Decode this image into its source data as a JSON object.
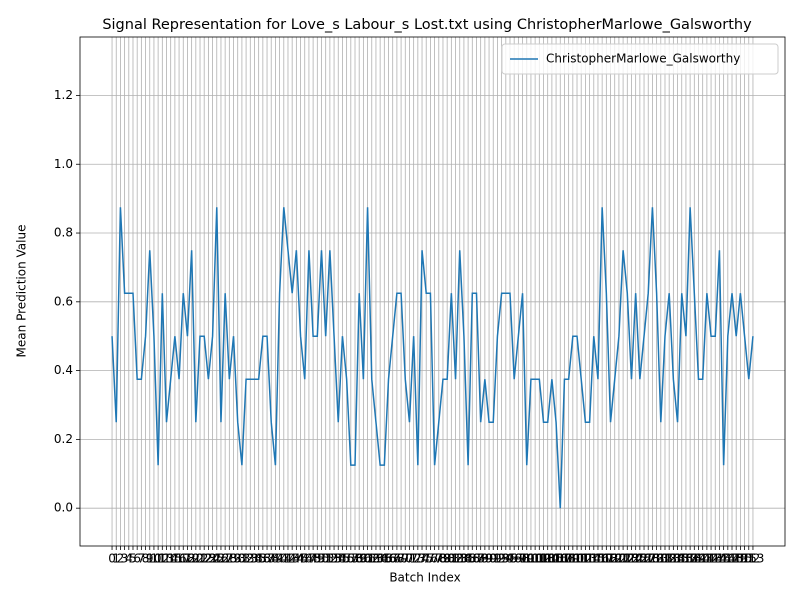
{
  "chart_data": {
    "type": "line",
    "title": "Signal Representation for Love_s Labour_s Lost.txt using ChristopherMarlowe_Galsworthy",
    "x_label": "Batch Index",
    "y_label": "Mean Prediction Value",
    "x": [
      0,
      1,
      2,
      3,
      4,
      5,
      6,
      7,
      8,
      9,
      10,
      11,
      12,
      13,
      14,
      15,
      16,
      17,
      18,
      19,
      20,
      21,
      22,
      23,
      24,
      25,
      26,
      27,
      28,
      29,
      30,
      31,
      32,
      33,
      34,
      35,
      36,
      37,
      38,
      39,
      40,
      41,
      42,
      43,
      44,
      45,
      46,
      47,
      48,
      49,
      50,
      51,
      52,
      53,
      54,
      55,
      56,
      57,
      58,
      59,
      60,
      61,
      62,
      63,
      64,
      65,
      66,
      67,
      68,
      69,
      70,
      71,
      72,
      73,
      74,
      75,
      76,
      77,
      78,
      79,
      80,
      81,
      82,
      83,
      84,
      85,
      86,
      87,
      88,
      89,
      90,
      91,
      92,
      93,
      94,
      95,
      96,
      97,
      98,
      99,
      100,
      101,
      102,
      103,
      104,
      105,
      106,
      107,
      108,
      109,
      110,
      111,
      112,
      113,
      114,
      115,
      116,
      117,
      118,
      119,
      120,
      121,
      122,
      123,
      124,
      125,
      126,
      127,
      128,
      129,
      130,
      131,
      132,
      133,
      134,
      135,
      136,
      137,
      138,
      139,
      140,
      141,
      142,
      143,
      144,
      145,
      146,
      147,
      148,
      149,
      150,
      151,
      152,
      153
    ],
    "series": [
      {
        "name": "ChristopherMarlowe_Galsworthy",
        "color": "#1f77b4",
        "values": [
          0.5,
          0.25,
          0.875,
          0.625,
          0.625,
          0.625,
          0.375,
          0.375,
          0.5,
          0.75,
          0.5,
          0.125,
          0.625,
          0.25,
          0.375,
          0.5,
          0.375,
          0.625,
          0.5,
          0.75,
          0.25,
          0.5,
          0.5,
          0.375,
          0.5,
          0.875,
          0.25,
          0.625,
          0.375,
          0.5,
          0.25,
          0.125,
          0.375,
          0.375,
          0.375,
          0.375,
          0.5,
          0.5,
          0.25,
          0.125,
          0.625,
          0.875,
          0.75,
          0.625,
          0.75,
          0.5,
          0.375,
          0.75,
          0.5,
          0.5,
          0.75,
          0.5,
          0.75,
          0.5,
          0.25,
          0.5,
          0.375,
          0.125,
          0.125,
          0.625,
          0.375,
          0.875,
          0.375,
          0.25,
          0.125,
          0.125,
          0.375,
          0.5,
          0.625,
          0.625,
          0.375,
          0.25,
          0.5,
          0.125,
          0.75,
          0.625,
          0.625,
          0.125,
          0.25,
          0.375,
          0.375,
          0.625,
          0.375,
          0.75,
          0.5,
          0.125,
          0.625,
          0.625,
          0.25,
          0.375,
          0.25,
          0.25,
          0.5,
          0.625,
          0.625,
          0.625,
          0.375,
          0.5,
          0.625,
          0.125,
          0.375,
          0.375,
          0.375,
          0.25,
          0.25,
          0.375,
          0.25,
          0,
          0.375,
          0.375,
          0.5,
          0.5,
          0.375,
          0.25,
          0.25,
          0.5,
          0.375,
          0.875,
          0.625,
          0.25,
          0.375,
          0.5,
          0.75,
          0.625,
          0.375,
          0.625,
          0.375,
          0.5,
          0.625,
          0.875,
          0.625,
          0.25,
          0.5,
          0.625,
          0.375,
          0.25,
          0.625,
          0.5,
          0.875,
          0.625,
          0.375,
          0.375,
          0.625,
          0.5,
          0.5,
          0.75,
          0.125,
          0.5,
          0.625,
          0.5,
          0.625,
          0.5,
          0.375,
          0.5
        ]
      }
    ],
    "xlim": [
      -7.65,
      160.65
    ],
    "ylim": [
      -0.11,
      1.37
    ],
    "xticks": [
      0,
      1,
      2,
      3,
      4,
      5,
      6,
      7,
      8,
      9,
      10,
      11,
      12,
      13,
      14,
      15,
      16,
      17,
      18,
      19,
      20,
      21,
      22,
      23,
      24,
      25,
      26,
      27,
      28,
      29,
      30,
      31,
      32,
      33,
      34,
      35,
      36,
      37,
      38,
      39,
      40,
      41,
      42,
      43,
      44,
      45,
      46,
      47,
      48,
      49,
      50,
      51,
      52,
      53,
      54,
      55,
      56,
      57,
      58,
      59,
      60,
      61,
      62,
      63,
      64,
      65,
      66,
      67,
      68,
      69,
      70,
      71,
      72,
      73,
      74,
      75,
      76,
      77,
      78,
      79,
      80,
      81,
      82,
      83,
      84,
      85,
      86,
      87,
      88,
      89,
      90,
      91,
      92,
      93,
      94,
      95,
      96,
      97,
      98,
      99,
      100,
      101,
      102,
      103,
      104,
      105,
      106,
      107,
      108,
      109,
      110,
      111,
      112,
      113,
      114,
      115,
      116,
      117,
      118,
      119,
      120,
      121,
      122,
      123,
      124,
      125,
      126,
      127,
      128,
      129,
      130,
      131,
      132,
      133,
      134,
      135,
      136,
      137,
      138,
      139,
      140,
      141,
      142,
      143,
      144,
      145,
      146,
      147,
      148,
      149,
      150,
      151,
      152,
      153
    ],
    "yticks": [
      {
        "value": 0,
        "label": "0.0"
      },
      0.2,
      0.4,
      0.6,
      0.8,
      {
        "value": 1,
        "label": "1.0"
      },
      1.2
    ],
    "grid": true,
    "legend": "upper-right"
  }
}
